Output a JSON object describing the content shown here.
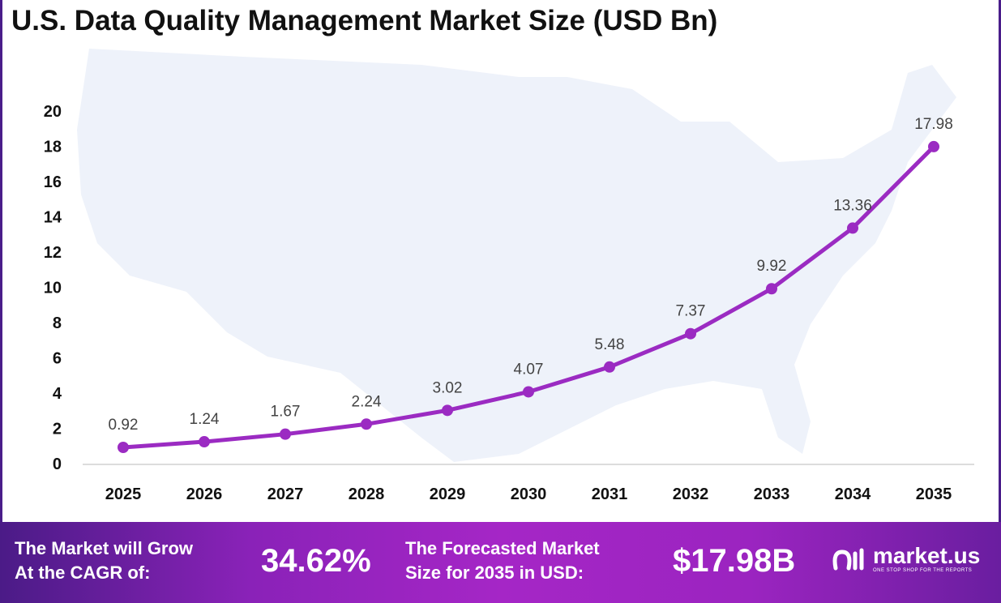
{
  "chart_data": {
    "type": "line",
    "title": "U.S. Data Quality Management Market Size (USD Bn)",
    "categories": [
      "2025",
      "2026",
      "2027",
      "2028",
      "2029",
      "2030",
      "2031",
      "2032",
      "2033",
      "2034",
      "2035"
    ],
    "series": [
      {
        "values": [
          0.92,
          1.24,
          1.67,
          2.24,
          3.02,
          4.07,
          5.48,
          7.37,
          9.92,
          13.36,
          17.98
        ]
      }
    ],
    "data_labels": [
      "0.92",
      "1.24",
      "1.67",
      "2.24",
      "3.02",
      "4.07",
      "5.48",
      "7.37",
      "9.92",
      "13.36",
      "17.98"
    ],
    "ylim": [
      0,
      20
    ],
    "yticks": [
      "0",
      "2",
      "4",
      "6",
      "8",
      "10",
      "12",
      "14",
      "16",
      "18",
      "20"
    ],
    "grid": false,
    "line_color": "#9b2bc2"
  },
  "banner": {
    "cagr_label": [
      "The Market will Grow",
      "At the CAGR of:"
    ],
    "cagr_value": "34.62%",
    "forecast_label": [
      "The Forecasted Market",
      "Size for 2035 in USD:"
    ],
    "forecast_value": "$17.98B",
    "logo_name": "market.us",
    "logo_tagline": "ONE STOP SHOP FOR THE REPORTS"
  }
}
